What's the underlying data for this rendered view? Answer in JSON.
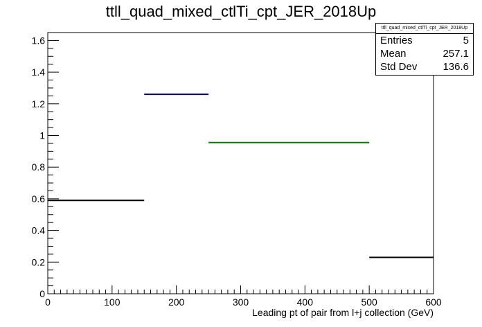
{
  "chart_data": {
    "type": "histogram",
    "title": "ttll_quad_mixed_ctlTi_cpt_JER_2018Up",
    "xlabel": "Leading pt of pair from l+j collection (GeV)",
    "ylabel": "",
    "xlim": [
      0,
      600
    ],
    "ylim": [
      0,
      1.65
    ],
    "x_ticks": [
      0,
      100,
      200,
      300,
      400,
      500,
      600
    ],
    "y_ticks": [
      0,
      0.2,
      0.4,
      0.6,
      0.8,
      1,
      1.2,
      1.4,
      1.6
    ],
    "x_tick_labels": [
      "0",
      "100",
      "200",
      "300",
      "400",
      "500",
      "600"
    ],
    "y_tick_labels": [
      "0",
      "0.2",
      "0.4",
      "0.6",
      "0.8",
      "1",
      "1.2",
      "1.4",
      "1.6"
    ],
    "bins": [
      {
        "x0": 0,
        "x1": 150,
        "value": 0.59,
        "color": "#000000"
      },
      {
        "x0": 150,
        "x1": 250,
        "value": 1.26,
        "color": "#000080"
      },
      {
        "x0": 250,
        "x1": 500,
        "value": 0.955,
        "color": "#008000"
      },
      {
        "x0": 500,
        "x1": 600,
        "value": 0.23,
        "color": "#000000"
      }
    ],
    "grid": false,
    "stats_box": {
      "name": "ttll_quad_mixed_ctlTi_cpt_JER_2018Up",
      "rows": [
        {
          "label": "Entries",
          "value": "5"
        },
        {
          "label": "Mean",
          "value": "257.1"
        },
        {
          "label": "Std Dev",
          "value": "136.6"
        }
      ]
    }
  }
}
